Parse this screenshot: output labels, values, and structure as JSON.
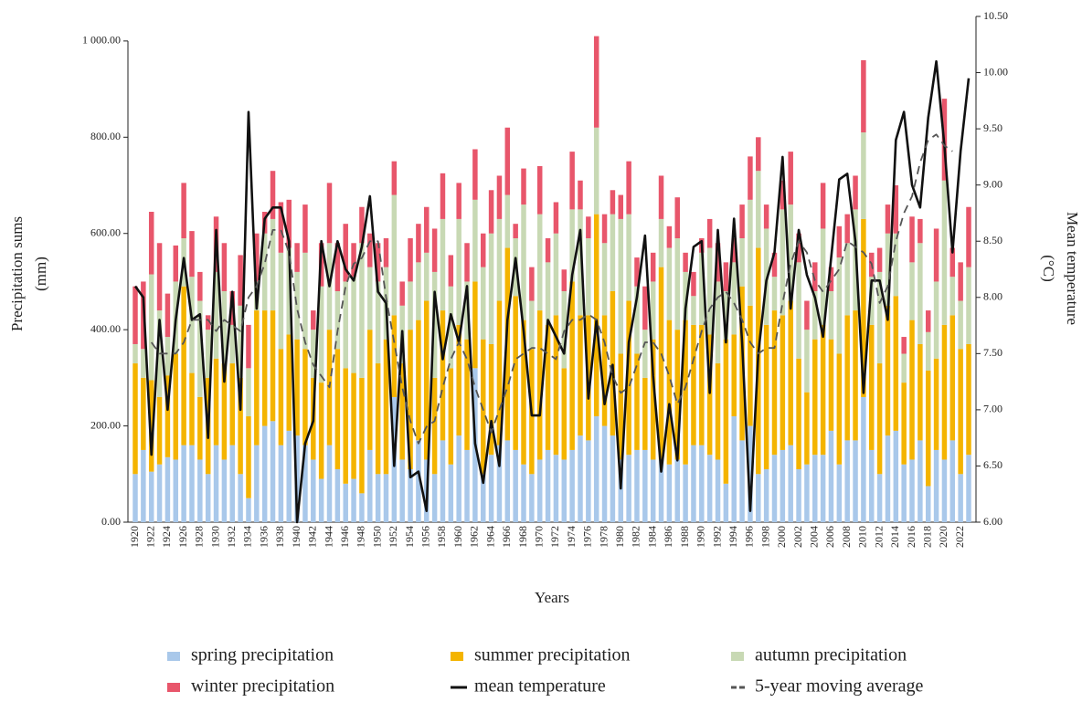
{
  "chart_data": {
    "type": "bar",
    "stacked": true,
    "x_label": "Years",
    "y_label": [
      "Precipitation sums",
      "(mm)"
    ],
    "y2_label": [
      "Mean temperature",
      "(°C)"
    ],
    "categories": [
      "1920",
      null,
      "1922",
      null,
      "1924",
      null,
      "1926",
      null,
      "1928",
      null,
      "1930",
      null,
      "1932",
      null,
      "1934",
      null,
      "1936",
      null,
      "1938",
      null,
      "1940",
      null,
      "1942",
      null,
      "1944",
      null,
      "1946",
      null,
      "1948",
      null,
      "1950",
      null,
      "1952",
      null,
      "1954",
      null,
      "1956",
      null,
      "1958",
      null,
      "1960",
      null,
      "1962",
      null,
      "1964",
      null,
      "1966",
      null,
      "1968",
      null,
      "1970",
      null,
      "1972",
      null,
      "1974",
      null,
      "1976",
      null,
      "1978",
      null,
      "1980",
      null,
      "1982",
      null,
      "1984",
      null,
      "1986",
      null,
      "1988",
      null,
      "1990",
      null,
      "1992",
      null,
      "1994",
      null,
      "1996",
      null,
      "1998",
      null,
      "2000",
      null,
      "2002",
      null,
      "2004",
      null,
      "2006",
      null,
      "2008",
      null,
      "2010",
      null,
      "2012",
      null,
      "2014",
      null,
      "2016",
      null,
      "2018",
      null,
      "2020",
      null,
      "2022",
      null
    ],
    "ylim": [
      0,
      1051
    ],
    "yticks": [
      {
        "value": 0,
        "label": "0.00"
      },
      {
        "value": 200,
        "label": "200.00"
      },
      {
        "value": 400,
        "label": "400.00"
      },
      {
        "value": 600,
        "label": "600.00"
      },
      {
        "value": 800,
        "label": "800.00"
      },
      {
        "value": 1000,
        "label": "1 000.00"
      }
    ],
    "y2lim": [
      6,
      10.5
    ],
    "y2ticks": [
      {
        "value": 6,
        "label": "6.00"
      },
      {
        "value": 6.5,
        "label": "6.50"
      },
      {
        "value": 7,
        "label": "7.00"
      },
      {
        "value": 7.5,
        "label": "7.50"
      },
      {
        "value": 8,
        "label": "8.00"
      },
      {
        "value": 8.5,
        "label": "8.50"
      },
      {
        "value": 9,
        "label": "9.00"
      },
      {
        "value": 9.5,
        "label": "9.50"
      },
      {
        "value": 10,
        "label": "10.00"
      },
      {
        "value": 10.5,
        "label": "10.50"
      }
    ],
    "series": [
      {
        "name": "spring precipitation",
        "type": "bar",
        "color": "#a9c8ea",
        "values": [
          100,
          150,
          105,
          120,
          135,
          130,
          160,
          160,
          130,
          100,
          160,
          130,
          160,
          100,
          50,
          160,
          200,
          210,
          160,
          190,
          180,
          160,
          130,
          90,
          160,
          110,
          80,
          90,
          60,
          150,
          100,
          100,
          260,
          130,
          110,
          170,
          130,
          100,
          170,
          120,
          180,
          150,
          320,
          100,
          140,
          160,
          170,
          150,
          120,
          100,
          130,
          150,
          140,
          130,
          150,
          180,
          170,
          220,
          200,
          180,
          130,
          140,
          150,
          150,
          130,
          130,
          120,
          130,
          120,
          160,
          160,
          140,
          130,
          80,
          220,
          170,
          200,
          100,
          110,
          140,
          150,
          160,
          110,
          120,
          140,
          140,
          190,
          120,
          170,
          170,
          260,
          150,
          100,
          180,
          190,
          120,
          130,
          170,
          75,
          150,
          130,
          170,
          100,
          140
        ]
      },
      {
        "name": "summer precipitation",
        "type": "bar",
        "color": "#f4b400",
        "values": [
          230,
          150,
          190,
          140,
          170,
          220,
          330,
          150,
          130,
          200,
          180,
          200,
          170,
          200,
          170,
          280,
          240,
          230,
          200,
          200,
          200,
          200,
          170,
          200,
          240,
          250,
          240,
          220,
          240,
          250,
          230,
          280,
          170,
          200,
          290,
          250,
          330,
          200,
          270,
          200,
          230,
          230,
          180,
          280,
          230,
          300,
          400,
          320,
          300,
          260,
          310,
          260,
          290,
          190,
          350,
          250,
          260,
          420,
          230,
          300,
          220,
          320,
          200,
          150,
          250,
          400,
          300,
          270,
          300,
          250,
          250,
          250,
          200,
          300,
          170,
          320,
          250,
          470,
          300,
          300,
          280,
          300,
          230,
          150,
          240,
          270,
          190,
          230,
          260,
          270,
          370,
          260,
          230,
          270,
          280,
          170,
          290,
          200,
          240,
          190,
          280,
          260,
          260,
          230
        ]
      },
      {
        "name": "autumn precipitation",
        "type": "bar",
        "color": "#c8d9b4",
        "values": [
          40,
          60,
          220,
          180,
          80,
          150,
          100,
          200,
          200,
          100,
          180,
          150,
          80,
          150,
          100,
          60,
          160,
          190,
          200,
          180,
          140,
          200,
          100,
          200,
          180,
          120,
          180,
          200,
          280,
          130,
          170,
          150,
          250,
          120,
          100,
          120,
          100,
          220,
          190,
          170,
          220,
          120,
          170,
          150,
          230,
          170,
          110,
          120,
          240,
          100,
          200,
          130,
          170,
          160,
          150,
          220,
          160,
          180,
          150,
          160,
          280,
          180,
          140,
          100,
          120,
          100,
          150,
          190,
          100,
          60,
          150,
          180,
          170,
          100,
          150,
          100,
          220,
          160,
          200,
          70,
          220,
          200,
          200,
          130,
          100,
          200,
          100,
          200,
          150,
          210,
          180,
          100,
          190,
          150,
          130,
          60,
          120,
          210,
          80,
          160,
          300,
          80,
          100,
          160
        ]
      },
      {
        "name": "winter precipitation",
        "type": "bar",
        "color": "#e8566b",
        "values": [
          120,
          140,
          130,
          140,
          90,
          75,
          115,
          95,
          60,
          30,
          115,
          100,
          70,
          105,
          90,
          100,
          45,
          100,
          105,
          100,
          60,
          100,
          40,
          90,
          125,
          100,
          120,
          70,
          75,
          70,
          80,
          60,
          70,
          50,
          90,
          80,
          95,
          90,
          95,
          65,
          75,
          80,
          105,
          70,
          90,
          90,
          140,
          30,
          75,
          70,
          100,
          50,
          65,
          45,
          120,
          60,
          45,
          190,
          60,
          50,
          50,
          110,
          60,
          90,
          60,
          90,
          45,
          85,
          40,
          50,
          30,
          60,
          80,
          60,
          50,
          70,
          90,
          70,
          50,
          50,
          60,
          110,
          60,
          60,
          60,
          95,
          50,
          65,
          60,
          70,
          150,
          50,
          50,
          60,
          100,
          35,
          95,
          50,
          45,
          110,
          170,
          60,
          80,
          125
        ]
      },
      {
        "name": "mean temperature",
        "type": "line",
        "axis": "y2",
        "color": "#111111",
        "line_style": "solid",
        "values": [
          8.1,
          8.0,
          6.6,
          7.8,
          7.0,
          7.8,
          8.35,
          7.8,
          7.85,
          6.75,
          8.6,
          7.25,
          8.05,
          7.0,
          9.65,
          7.9,
          8.7,
          8.8,
          8.8,
          8.5,
          6.0,
          6.7,
          6.9,
          8.5,
          8.1,
          8.5,
          8.25,
          8.15,
          8.45,
          8.9,
          8.05,
          7.95,
          6.5,
          7.7,
          6.4,
          6.45,
          6.1,
          8.05,
          7.45,
          7.85,
          7.6,
          8.1,
          6.7,
          6.35,
          6.9,
          6.5,
          7.8,
          8.35,
          7.7,
          6.95,
          6.95,
          7.8,
          7.65,
          7.5,
          8.2,
          8.6,
          7.1,
          7.8,
          7.05,
          7.4,
          6.3,
          7.6,
          8.0,
          8.55,
          7.3,
          6.45,
          7.05,
          6.55,
          7.9,
          8.45,
          8.5,
          7.15,
          8.6,
          7.6,
          8.7,
          7.6,
          6.1,
          7.5,
          8.15,
          8.4,
          9.25,
          7.9,
          8.6,
          8.2,
          8.0,
          7.65,
          8.35,
          9.05,
          9.1,
          8.5,
          7.15,
          8.15,
          8.15,
          7.8,
          9.4,
          9.65,
          9.0,
          8.8,
          9.6,
          10.1,
          9.35,
          8.4,
          9.3,
          9.95
        ]
      },
      {
        "name": "5-year moving average",
        "type": "line",
        "axis": "y2",
        "color": "#555555",
        "line_style": "dashed",
        "values": [
          null,
          null,
          7.6,
          7.5,
          7.5,
          7.5,
          7.6,
          7.8,
          7.8,
          7.8,
          7.7,
          7.8,
          7.75,
          7.7,
          8.0,
          8.1,
          8.3,
          8.6,
          8.6,
          8.4,
          7.9,
          7.6,
          7.4,
          7.3,
          7.2,
          7.7,
          8.1,
          8.3,
          8.35,
          8.5,
          8.5,
          8.0,
          7.6,
          7.2,
          6.9,
          6.7,
          6.85,
          6.9,
          7.2,
          7.45,
          7.6,
          7.45,
          7.2,
          7.0,
          6.8,
          7.0,
          7.2,
          7.45,
          7.5,
          7.55,
          7.55,
          7.5,
          7.45,
          7.7,
          7.8,
          7.8,
          7.85,
          7.8,
          7.6,
          7.3,
          7.15,
          7.2,
          7.4,
          7.6,
          7.6,
          7.5,
          7.3,
          7.05,
          7.2,
          7.45,
          7.7,
          7.9,
          8.0,
          8.05,
          7.95,
          7.8,
          7.6,
          7.5,
          7.55,
          7.55,
          7.95,
          8.3,
          8.5,
          8.4,
          8.15,
          8.05,
          8.15,
          8.25,
          8.5,
          8.45,
          8.4,
          8.3,
          7.95,
          8.1,
          8.5,
          8.75,
          8.9,
          9.2,
          9.4,
          9.45,
          9.35,
          9.3,
          null,
          null
        ]
      }
    ]
  }
}
